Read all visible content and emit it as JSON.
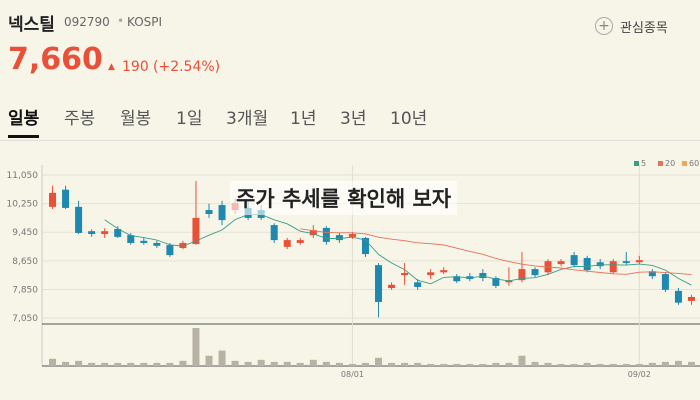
{
  "header": {
    "name": "넥스틸",
    "code": "092790",
    "market": "KOSPI",
    "watch": "관심종목",
    "price": "7,660",
    "change": "190",
    "change_pct": "(+2.54%)"
  },
  "tabs": [
    "일봉",
    "주봉",
    "월봉",
    "1일",
    "3개월",
    "1년",
    "3년",
    "10년"
  ],
  "overlay": "주가 추세를 확인해 보자",
  "chart_data": {
    "type": "candlestick",
    "categories": [
      null,
      null,
      null,
      null,
      null,
      null,
      null,
      null,
      null,
      null,
      null,
      null,
      null,
      null,
      null,
      null,
      null,
      null,
      null,
      null,
      null,
      null,
      null,
      "08/01",
      null,
      null,
      null,
      null,
      null,
      null,
      null,
      null,
      null,
      null,
      null,
      null,
      null,
      null,
      null,
      null,
      null,
      null,
      null,
      null,
      null,
      "09/02",
      null,
      null,
      null,
      null
    ],
    "open": [
      10160,
      10640,
      10160,
      9480,
      9400,
      9540,
      9370,
      9210,
      9150,
      9090,
      9010,
      9120,
      10070,
      10210,
      10070,
      10130,
      10070,
      9650,
      9040,
      9150,
      9370,
      9570,
      9370,
      9320,
      9290,
      8530,
      7890,
      8250,
      8050,
      8250,
      8330,
      8220,
      8220,
      8310,
      8170,
      8050,
      8110,
      8420,
      8330,
      8560,
      8810,
      8730,
      8610,
      8330,
      8640,
      8610,
      8360,
      8280,
      7810,
      7530
    ],
    "high": [
      10750,
      10750,
      10330,
      9530,
      9560,
      9620,
      9430,
      9290,
      9210,
      9150,
      9210,
      10880,
      10250,
      10330,
      10400,
      10330,
      10210,
      9700,
      9290,
      9290,
      9650,
      9620,
      9430,
      9460,
      9320,
      8590,
      8050,
      8590,
      8140,
      8420,
      8470,
      8280,
      8310,
      8420,
      8220,
      8470,
      8900,
      8470,
      8700,
      8700,
      8900,
      8790,
      8700,
      8700,
      8900,
      8790,
      8420,
      8330,
      7890,
      7700
    ],
    "low": [
      10100,
      10100,
      9400,
      9320,
      9290,
      9290,
      9100,
      9100,
      9010,
      8760,
      8980,
      9100,
      9850,
      9650,
      9960,
      9790,
      9790,
      9150,
      8980,
      9100,
      9290,
      9100,
      9150,
      9260,
      8760,
      7070,
      7840,
      7980,
      7840,
      8140,
      8280,
      8030,
      8080,
      8080,
      7890,
      7950,
      8050,
      8200,
      8250,
      8500,
      8470,
      8330,
      8420,
      8280,
      8530,
      8560,
      8140,
      7780,
      7420,
      7420
    ],
    "close": [
      10550,
      10130,
      9430,
      9400,
      9480,
      9320,
      9150,
      9150,
      9070,
      8810,
      9150,
      9850,
      9960,
      9790,
      10270,
      9850,
      9850,
      9230,
      9230,
      9230,
      9510,
      9180,
      9230,
      9400,
      8840,
      7500,
      7980,
      8310,
      7920,
      8330,
      8390,
      8080,
      8140,
      8170,
      7950,
      8110,
      8420,
      8250,
      8640,
      8640,
      8530,
      8390,
      8500,
      8640,
      8590,
      8670,
      8220,
      7840,
      7480,
      7640
    ],
    "volume": [
      7,
      4,
      5,
      3,
      3,
      3,
      3,
      3,
      3,
      3,
      5,
      37,
      10,
      15,
      5,
      4,
      6,
      4,
      4,
      3,
      6,
      4,
      3,
      2,
      3,
      8,
      3,
      3,
      3,
      2,
      2,
      2,
      2,
      2,
      3,
      3,
      10,
      4,
      3,
      2,
      2,
      3,
      2,
      2,
      2,
      2,
      3,
      4,
      5,
      4
    ],
    "up_color": "#e8503a",
    "down_color": "#1f88b0",
    "volume_color": "#b7b2a4",
    "ylim": [
      6940,
      11330
    ],
    "yticks": [
      {
        "value": 7050,
        "label": "7,050"
      },
      {
        "value": 7850,
        "label": "7,850"
      },
      {
        "value": 8650,
        "label": "8,650"
      },
      {
        "value": 9450,
        "label": "9,450"
      },
      {
        "value": 10250,
        "label": "10,250"
      },
      {
        "value": 11050,
        "label": "11,050"
      }
    ],
    "grid": true,
    "series": [
      {
        "name": "5",
        "color": "#3a9d8a"
      },
      {
        "name": "20",
        "color": "#e4725c"
      },
      {
        "name": "60",
        "color": "#f0a860"
      }
    ]
  }
}
